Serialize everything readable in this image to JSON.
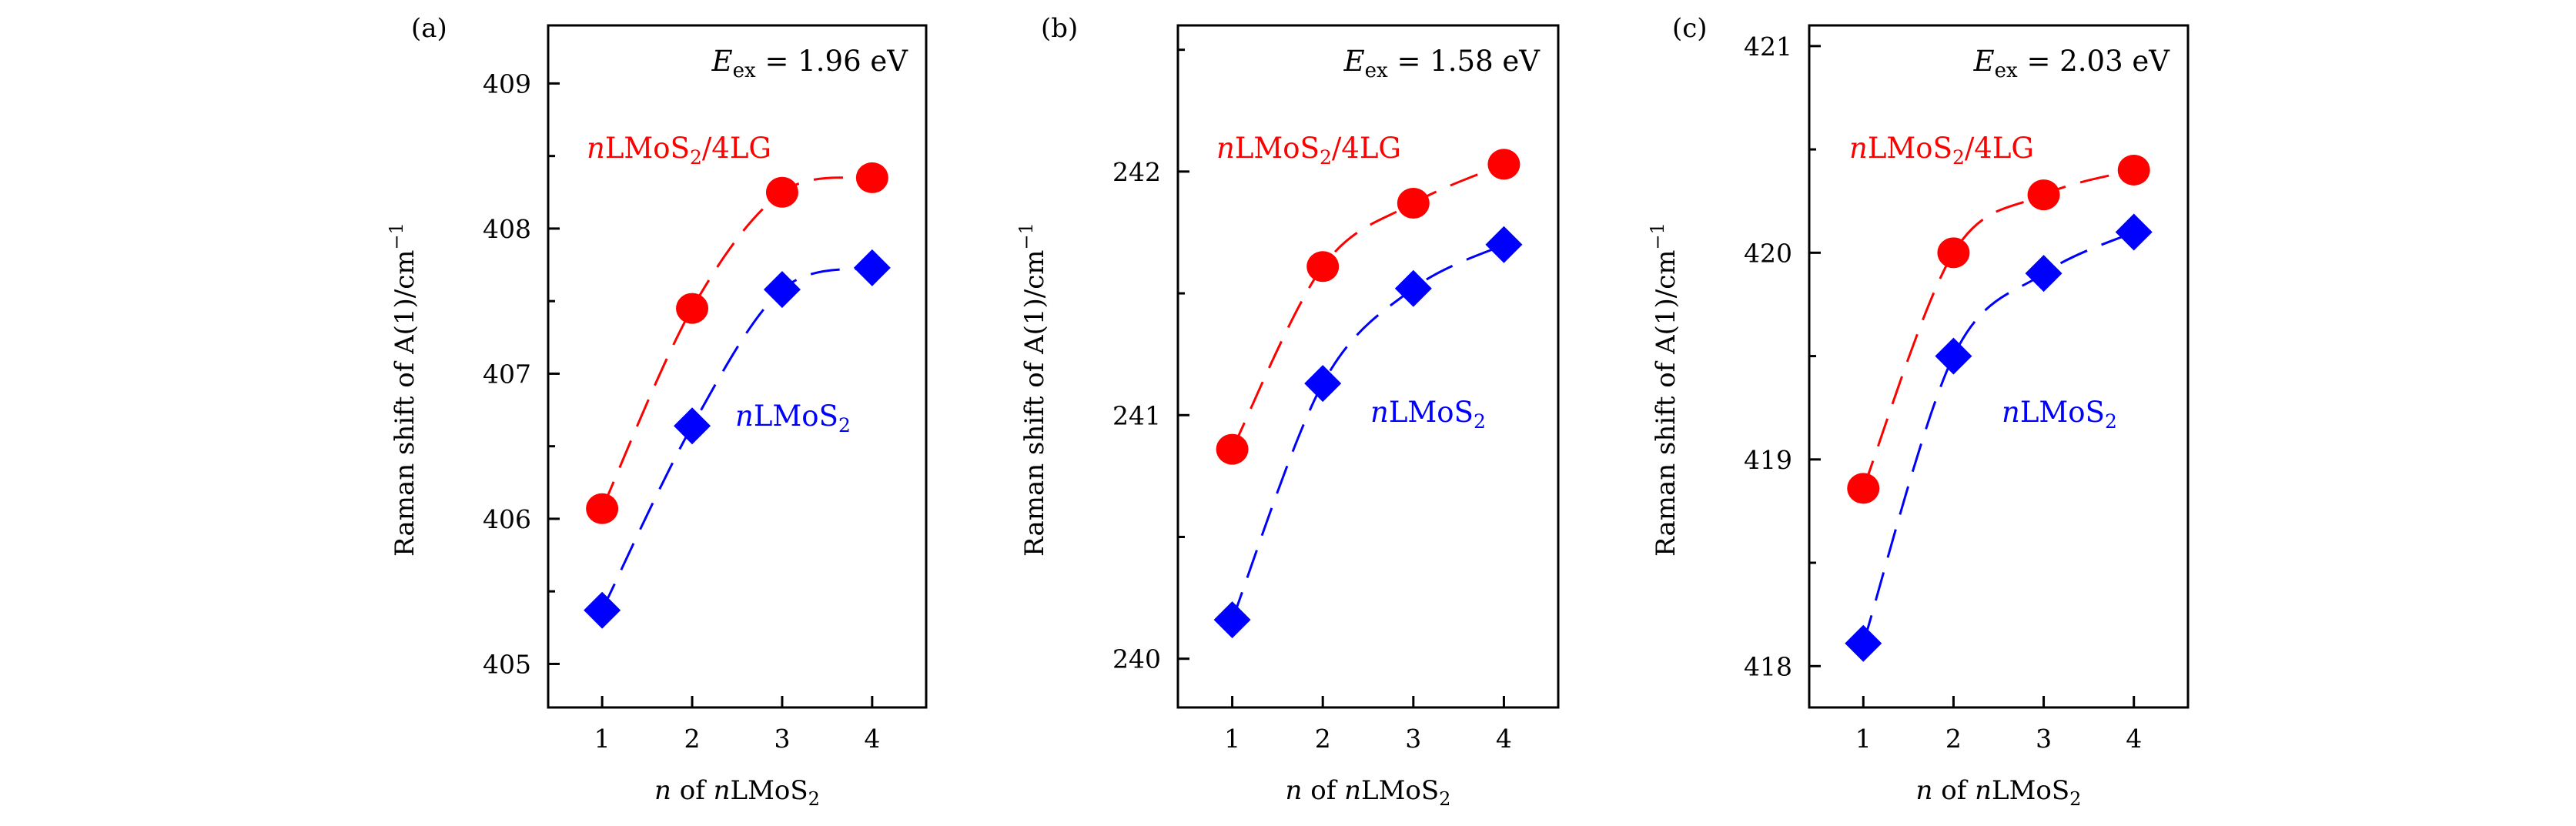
{
  "figure": {
    "background": "#ffffff",
    "axis_color": "#000000"
  },
  "chart_data": [
    {
      "type": "line",
      "panel_label": "(a)",
      "annotation": {
        "symbol": "E",
        "subscript": "ex",
        "text": " = 1.96 eV"
      },
      "xlabel": {
        "italic": "n",
        "mid": " of ",
        "italic2": "n",
        "main": "LMoS",
        "sub": "2"
      },
      "ylabel": "Raman shift of A(1)/cm",
      "ylabel_sup": "−1",
      "x": [
        1,
        2,
        3,
        4
      ],
      "xticks": [
        1,
        2,
        3,
        4
      ],
      "xlim": [
        0.4,
        4.6
      ],
      "ylim": [
        404.7,
        409.4
      ],
      "yticks_major": [
        405,
        406,
        407,
        408,
        409
      ],
      "yticks_minor": [
        405.5,
        406.5,
        407.5,
        408.5
      ],
      "series": [
        {
          "name": "nLMoS2/4LG",
          "label": {
            "italic": "n",
            "main": "LMoS",
            "sub": "2",
            "tail": "/4LG"
          },
          "color": "#ff0000",
          "marker": "circle",
          "linestyle": "dashed",
          "values": [
            406.07,
            407.45,
            408.25,
            408.35
          ]
        },
        {
          "name": "nLMoS2",
          "label": {
            "italic": "n",
            "main": "LMoS",
            "sub": "2",
            "tail": ""
          },
          "color": "#0000ff",
          "marker": "diamond",
          "linestyle": "dashed",
          "values": [
            405.37,
            406.64,
            407.58,
            407.73
          ]
        }
      ]
    },
    {
      "type": "line",
      "panel_label": "(b)",
      "annotation": {
        "symbol": "E",
        "subscript": "ex",
        "text": " = 1.58 eV"
      },
      "xlabel": {
        "italic": "n",
        "mid": " of ",
        "italic2": "n",
        "main": "LMoS",
        "sub": "2"
      },
      "ylabel": "Raman shift of A(1)/cm",
      "ylabel_sup": "−1",
      "x": [
        1,
        2,
        3,
        4
      ],
      "xticks": [
        1,
        2,
        3,
        4
      ],
      "xlim": [
        0.4,
        4.6
      ],
      "ylim": [
        239.8,
        242.6
      ],
      "yticks_major": [
        240,
        241,
        242
      ],
      "yticks_minor": [
        240.5,
        241.5,
        242.5
      ],
      "series": [
        {
          "name": "nLMoS2/4LG",
          "label": {
            "italic": "n",
            "main": "LMoS",
            "sub": "2",
            "tail": "/4LG"
          },
          "color": "#ff0000",
          "marker": "circle",
          "linestyle": "dashed",
          "values": [
            240.86,
            241.61,
            241.87,
            242.03
          ]
        },
        {
          "name": "nLMoS2",
          "label": {
            "italic": "n",
            "main": "LMoS",
            "sub": "2",
            "tail": ""
          },
          "color": "#0000ff",
          "marker": "diamond",
          "linestyle": "dashed",
          "values": [
            240.16,
            241.13,
            241.52,
            241.7
          ]
        }
      ]
    },
    {
      "type": "line",
      "panel_label": "(c)",
      "annotation": {
        "symbol": "E",
        "subscript": "ex",
        "text": " = 2.03 eV"
      },
      "xlabel": {
        "italic": "n",
        "mid": " of ",
        "italic2": "n",
        "main": "LMoS",
        "sub": "2"
      },
      "ylabel": "Raman shift of A(1)/cm",
      "ylabel_sup": "−1",
      "x": [
        1,
        2,
        3,
        4
      ],
      "xticks": [
        1,
        2,
        3,
        4
      ],
      "xlim": [
        0.4,
        4.6
      ],
      "ylim": [
        417.8,
        421.1
      ],
      "yticks_major": [
        418,
        419,
        420,
        421
      ],
      "yticks_minor": [
        418.5,
        419.5,
        420.5
      ],
      "series": [
        {
          "name": "nLMoS2/4LG",
          "label": {
            "italic": "n",
            "main": "LMoS",
            "sub": "2",
            "tail": "/4LG"
          },
          "color": "#ff0000",
          "marker": "circle",
          "linestyle": "dashed",
          "values": [
            418.86,
            420.0,
            420.28,
            420.4
          ]
        },
        {
          "name": "nLMoS2",
          "label": {
            "italic": "n",
            "main": "LMoS",
            "sub": "2",
            "tail": ""
          },
          "color": "#0000ff",
          "marker": "diamond",
          "linestyle": "dashed",
          "values": [
            418.11,
            419.5,
            419.9,
            420.1
          ]
        }
      ]
    }
  ]
}
